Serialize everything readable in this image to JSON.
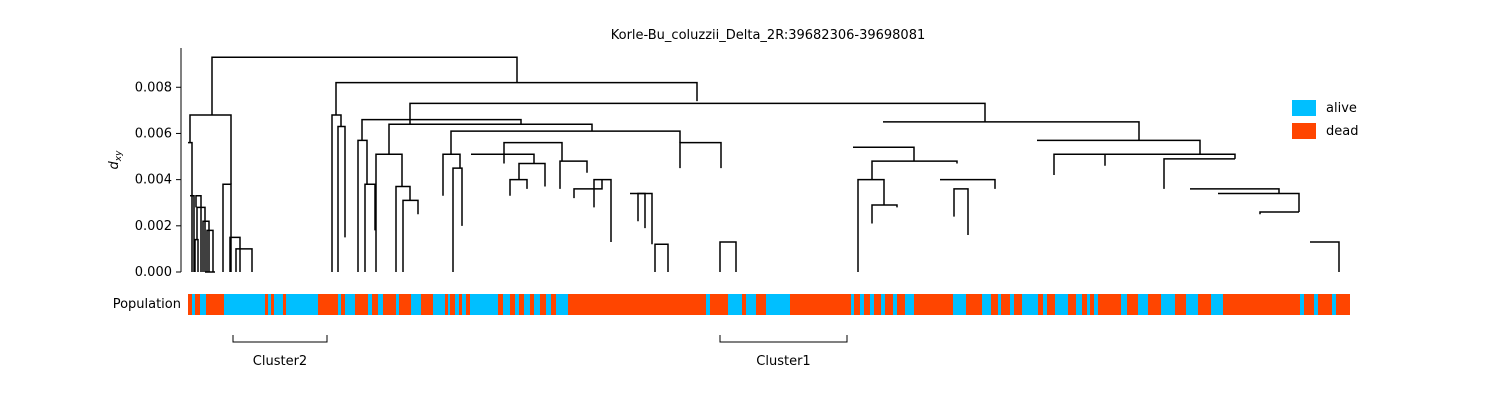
{
  "chart_data": {
    "type": "dendrogram",
    "title": "Korle-Bu_coluzzii_Delta_2R:39682306-39698081",
    "ylabel_main": "d",
    "ylabel_sub": "xy",
    "ylim": [
      0,
      0.0097
    ],
    "yticks": [
      {
        "value": 0.0,
        "label": "0.000"
      },
      {
        "value": 0.002,
        "label": "0.002"
      },
      {
        "value": 0.004,
        "label": "0.004"
      },
      {
        "value": 0.006,
        "label": "0.006"
      },
      {
        "value": 0.008,
        "label": "0.008"
      }
    ],
    "population_label": "Population",
    "legend": [
      {
        "label": "alive",
        "color": "#00bfff"
      },
      {
        "label": "dead",
        "color": "#ff4500"
      }
    ],
    "link_color": "#000000",
    "merges": [
      [
        188,
        192,
        0.0056,
        0.0056,
        0.0
      ],
      [
        190,
        194,
        0.0033,
        0.0033,
        0.0
      ],
      [
        195,
        198,
        0.0014,
        0.0,
        0.0
      ],
      [
        197,
        205,
        0.0028,
        0.0014,
        0.0
      ],
      [
        203,
        209,
        0.0022,
        0.0,
        0.0
      ],
      [
        207,
        213,
        0.0018,
        0.0,
        0.0
      ],
      [
        196,
        201,
        0.0033,
        0.0028,
        0.0
      ],
      [
        205,
        215,
        0.0,
        0.0,
        0.0
      ],
      [
        223,
        231,
        0.0038,
        0.0,
        0.0
      ],
      [
        230,
        240,
        0.0015,
        0.0,
        0.0
      ],
      [
        236,
        252,
        0.001,
        0.0,
        0.0
      ],
      [
        190,
        231,
        0.0068,
        0.0056,
        0.0038
      ],
      [
        212,
        517,
        0.0093,
        0.0068,
        0.0082
      ],
      [
        336,
        697,
        0.0082,
        0.0068,
        0.0074
      ],
      [
        332,
        341,
        0.0068,
        0.0,
        0.0063
      ],
      [
        338,
        345,
        0.0063,
        0.0,
        0.0015
      ],
      [
        362,
        521,
        0.0066,
        0.0057,
        0.0064
      ],
      [
        358,
        367,
        0.0057,
        0.0,
        0.0038
      ],
      [
        365,
        375,
        0.0038,
        0.0,
        0.0018
      ],
      [
        389,
        592,
        0.0064,
        0.0051,
        0.0061
      ],
      [
        376,
        402,
        0.0051,
        0.0,
        0.0037
      ],
      [
        396,
        410,
        0.0037,
        0.0,
        0.0031
      ],
      [
        403,
        418,
        0.0031,
        0.0,
        0.0025
      ],
      [
        410,
        985,
        0.0073,
        0.0064,
        0.0065
      ],
      [
        451,
        680,
        0.0061,
        0.0051,
        0.0056
      ],
      [
        443,
        460,
        0.0051,
        0.0033,
        0.0045
      ],
      [
        453,
        462,
        0.0045,
        0.0,
        0.002
      ],
      [
        471,
        534,
        0.0051,
        0.0051,
        0.0047
      ],
      [
        504,
        562,
        0.0056,
        0.0047,
        0.0048
      ],
      [
        519,
        545,
        0.0047,
        0.004,
        0.0037
      ],
      [
        510,
        527,
        0.004,
        0.0033,
        0.0036
      ],
      [
        560,
        587,
        0.0048,
        0.0036,
        0.0043
      ],
      [
        574,
        602,
        0.0036,
        0.0032,
        0.004
      ],
      [
        594,
        611,
        0.004,
        0.0028,
        0.0013
      ],
      [
        630,
        645,
        0.0034,
        0.0034,
        0.0019
      ],
      [
        638,
        652,
        0.0034,
        0.0022,
        0.0012
      ],
      [
        655,
        668,
        0.0012,
        0.0,
        0.0
      ],
      [
        680,
        721,
        0.0056,
        0.0045,
        0.0045
      ],
      [
        720,
        736,
        0.0013,
        0.0,
        0.0
      ],
      [
        883,
        1087,
        0.0065,
        0.0065,
        0.0065
      ],
      [
        853,
        914,
        0.0054,
        0.0054,
        0.0048
      ],
      [
        872,
        957,
        0.0048,
        0.004,
        0.0047
      ],
      [
        858,
        884,
        0.004,
        0.0,
        0.0029
      ],
      [
        872,
        897,
        0.0029,
        0.0021,
        0.0028
      ],
      [
        940,
        995,
        0.004,
        0.004,
        0.0036
      ],
      [
        954,
        968,
        0.0036,
        0.0024,
        0.0016
      ],
      [
        1087,
        1139,
        0.0065,
        0.0065,
        0.0057
      ],
      [
        1037,
        1200,
        0.0057,
        0.0057,
        0.0051
      ],
      [
        1054,
        1105,
        0.0051,
        0.0042,
        0.0046
      ],
      [
        1078,
        1200,
        0.0051,
        0.0051,
        0.0051
      ],
      [
        1139,
        1235,
        0.0051,
        0.0051,
        0.0049
      ],
      [
        1164,
        1235,
        0.0049,
        0.0036,
        0.0049
      ],
      [
        1190,
        1279,
        0.0036,
        0.0036,
        0.0034
      ],
      [
        1218,
        1299,
        0.0034,
        0.0034,
        0.0026
      ],
      [
        1260,
        1299,
        0.0026,
        0.0025,
        0.0026
      ],
      [
        1310,
        1339,
        0.0013,
        0.0013,
        0.0
      ]
    ],
    "population_bar": [
      [
        "dead",
        188,
        192
      ],
      [
        "alive",
        192,
        195
      ],
      [
        "dead",
        195,
        200
      ],
      [
        "alive",
        200,
        206
      ],
      [
        "dead",
        206,
        224
      ],
      [
        "alive",
        224,
        265
      ],
      [
        "dead",
        265,
        268
      ],
      [
        "alive",
        268,
        271
      ],
      [
        "dead",
        271,
        274
      ],
      [
        "alive",
        274,
        283
      ],
      [
        "dead",
        283,
        286
      ],
      [
        "alive",
        286,
        318
      ],
      [
        "dead",
        318,
        338
      ],
      [
        "alive",
        338,
        341
      ],
      [
        "dead",
        341,
        345
      ],
      [
        "alive",
        345,
        355
      ],
      [
        "dead",
        355,
        368
      ],
      [
        "alive",
        368,
        372
      ],
      [
        "dead",
        372,
        378
      ],
      [
        "alive",
        378,
        383
      ],
      [
        "dead",
        383,
        396
      ],
      [
        "alive",
        396,
        399
      ],
      [
        "dead",
        399,
        411
      ],
      [
        "alive",
        411,
        421
      ],
      [
        "dead",
        421,
        433
      ],
      [
        "alive",
        433,
        445
      ],
      [
        "dead",
        445,
        448
      ],
      [
        "alive",
        448,
        450
      ],
      [
        "dead",
        450,
        455
      ],
      [
        "alive",
        455,
        459
      ],
      [
        "dead",
        459,
        462
      ],
      [
        "alive",
        462,
        466
      ],
      [
        "dead",
        466,
        470
      ],
      [
        "alive",
        470,
        498
      ],
      [
        "dead",
        498,
        503
      ],
      [
        "alive",
        503,
        510
      ],
      [
        "dead",
        510,
        515
      ],
      [
        "alive",
        515,
        519
      ],
      [
        "dead",
        519,
        524
      ],
      [
        "alive",
        524,
        530
      ],
      [
        "dead",
        530,
        534
      ],
      [
        "alive",
        534,
        540
      ],
      [
        "dead",
        540,
        546
      ],
      [
        "alive",
        546,
        551
      ],
      [
        "dead",
        551,
        556
      ],
      [
        "alive",
        556,
        568
      ],
      [
        "dead",
        568,
        706
      ],
      [
        "alive",
        706,
        710
      ],
      [
        "dead",
        710,
        728
      ],
      [
        "alive",
        728,
        742
      ],
      [
        "dead",
        742,
        746
      ],
      [
        "alive",
        746,
        756
      ],
      [
        "dead",
        756,
        766
      ],
      [
        "alive",
        766,
        790
      ],
      [
        "dead",
        790,
        851
      ],
      [
        "alive",
        851,
        854
      ],
      [
        "dead",
        854,
        860
      ],
      [
        "alive",
        860,
        864
      ],
      [
        "dead",
        864,
        870
      ],
      [
        "alive",
        870,
        874
      ],
      [
        "dead",
        874,
        881
      ],
      [
        "alive",
        881,
        885
      ],
      [
        "dead",
        885,
        893
      ],
      [
        "alive",
        893,
        897
      ],
      [
        "dead",
        897,
        905
      ],
      [
        "alive",
        905,
        914
      ],
      [
        "dead",
        914,
        953
      ],
      [
        "alive",
        953,
        966
      ],
      [
        "dead",
        966,
        982
      ],
      [
        "alive",
        982,
        991
      ],
      [
        "dead",
        991,
        998
      ],
      [
        "alive",
        998,
        1001
      ],
      [
        "dead",
        1001,
        1010
      ],
      [
        "alive",
        1010,
        1014
      ],
      [
        "dead",
        1014,
        1022
      ],
      [
        "alive",
        1022,
        1038
      ],
      [
        "dead",
        1038,
        1043
      ],
      [
        "alive",
        1043,
        1047
      ],
      [
        "dead",
        1047,
        1055
      ],
      [
        "alive",
        1055,
        1068
      ],
      [
        "dead",
        1068,
        1076
      ],
      [
        "alive",
        1076,
        1082
      ],
      [
        "dead",
        1082,
        1087
      ],
      [
        "alive",
        1087,
        1090
      ],
      [
        "dead",
        1090,
        1094
      ],
      [
        "alive",
        1094,
        1098
      ],
      [
        "dead",
        1098,
        1121
      ],
      [
        "alive",
        1121,
        1127
      ],
      [
        "dead",
        1127,
        1138
      ],
      [
        "alive",
        1138,
        1148
      ],
      [
        "dead",
        1148,
        1161
      ],
      [
        "alive",
        1161,
        1175
      ],
      [
        "dead",
        1175,
        1186
      ],
      [
        "alive",
        1186,
        1198
      ],
      [
        "dead",
        1198,
        1211
      ],
      [
        "alive",
        1211,
        1223
      ],
      [
        "dead",
        1223,
        1300
      ],
      [
        "alive",
        1300,
        1304
      ],
      [
        "dead",
        1304,
        1314
      ],
      [
        "alive",
        1314,
        1318
      ],
      [
        "dead",
        1318,
        1332
      ],
      [
        "alive",
        1332,
        1336
      ],
      [
        "dead",
        1336,
        1350
      ]
    ],
    "clusters": [
      {
        "label": "Cluster2",
        "x_from": 233,
        "x_to": 327
      },
      {
        "label": "Cluster1",
        "x_from": 720,
        "x_to": 847
      }
    ]
  }
}
